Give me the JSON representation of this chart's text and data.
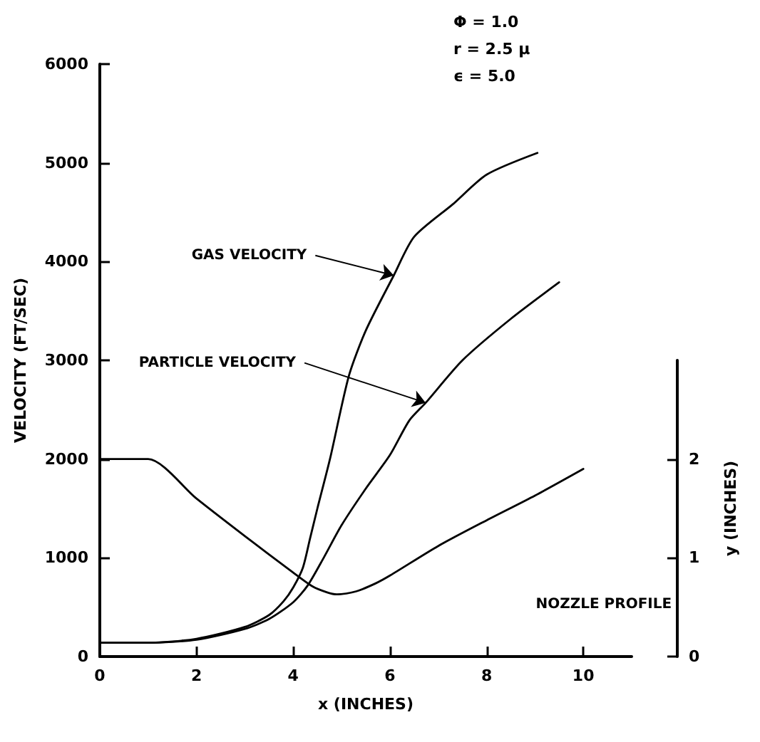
{
  "chart_data": {
    "type": "line",
    "xlabel": "x (INCHES)",
    "ylabel": "VELOCITY (FT/SEC)",
    "y2label": "y (INCHES)",
    "annotations": [
      "Φ = 1.0",
      "r = 2.5 μ",
      "ϵ = 5.0",
      {
        "text": "GAS VELOCITY",
        "x": 6.08,
        "y": 3860
      },
      {
        "text": "PARTICLE VELOCITY",
        "x": 6.74,
        "y": 2570
      },
      "NOZZLE PROFILE"
    ],
    "xlim": [
      0,
      11
    ],
    "xticks": [
      0,
      2,
      4,
      6,
      8,
      10
    ],
    "ylim": [
      0,
      6000
    ],
    "yticks": [
      0,
      1000,
      2000,
      3000,
      4000,
      5000,
      6000
    ],
    "y2lim": [
      0,
      3
    ],
    "y2ticks": [
      0,
      1,
      2
    ],
    "grid": false,
    "marker": "none",
    "line_style": "solid",
    "series": [
      {
        "color": "#000000",
        "x": [
          0,
          1,
          2,
          3,
          3.5,
          3.8,
          4.0,
          4.2,
          4.35,
          4.5,
          4.76,
          5.15,
          5.5,
          6.08,
          6.5,
          7.3,
          8,
          9.05
        ],
        "values": [
          140,
          140,
          180,
          300,
          420,
          560,
          700,
          900,
          1200,
          1500,
          2000,
          2840,
          3300,
          3860,
          4250,
          4580,
          4880,
          5100
        ]
      },
      {
        "color": "#000000",
        "x": [
          0,
          1,
          2,
          3,
          3.5,
          4,
          4.3,
          4.63,
          5.0,
          5.5,
          6.0,
          6.4,
          6.74,
          7.5,
          8.5,
          9.5
        ],
        "values": [
          140,
          140,
          170,
          280,
          380,
          550,
          720,
          1000,
          1330,
          1700,
          2040,
          2390,
          2570,
          3000,
          3420,
          3790
        ]
      },
      {
        "color": "#000000",
        "axis": "y2",
        "x": [
          0,
          1,
          2,
          3,
          4,
          4.4,
          4.7,
          4.9,
          5.3,
          5.7,
          6,
          7,
          8,
          9,
          10
        ],
        "values": [
          2.0,
          2.0,
          1.6,
          1.22,
          0.85,
          0.71,
          0.65,
          0.63,
          0.66,
          0.74,
          0.82,
          1.12,
          1.38,
          1.63,
          1.9
        ]
      }
    ]
  }
}
